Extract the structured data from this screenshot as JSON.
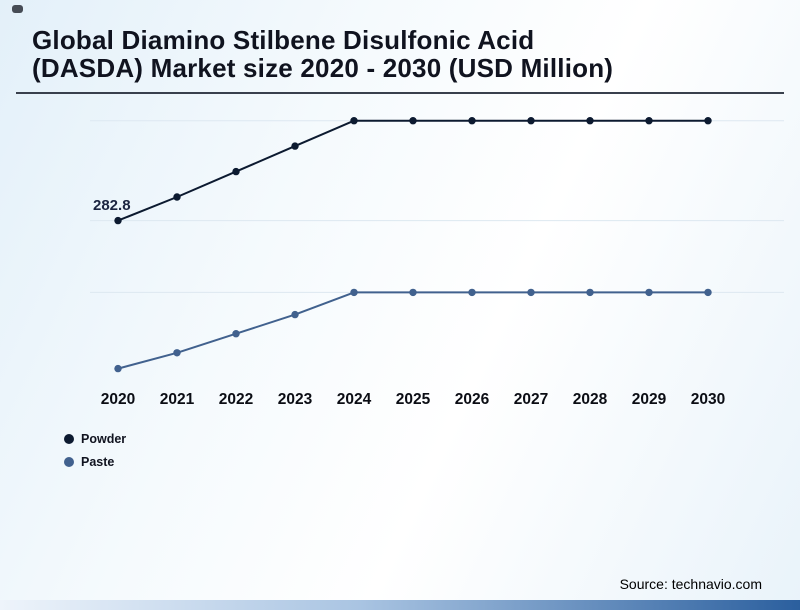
{
  "page": {
    "title": "Global Diamino Stilbene Disulfonic Acid (DASDA) Market size 2020 - 2030 (USD Million)",
    "source": "Source: technavio.com"
  },
  "chart_data": {
    "type": "line",
    "title": "Global Diamino Stilbene Disulfonic Acid (DASDA) Market size 2020 - 2030 (USD Million)",
    "xlabel": "",
    "ylabel": "USD Million",
    "categories": [
      "2020",
      "2021",
      "2022",
      "2023",
      "2024",
      "2025",
      "2026",
      "2027",
      "2028",
      "2029",
      "2030"
    ],
    "series": [
      {
        "name": "Powder",
        "color": "#0c1a30",
        "values": [
          282.8,
          320,
          360,
          400,
          440,
          440,
          440,
          440,
          440,
          440,
          440
        ]
      },
      {
        "name": "Paste",
        "color": "#41618e",
        "values": [
          50,
          75,
          105,
          135,
          170,
          170,
          170,
          170,
          170,
          170,
          170
        ]
      }
    ],
    "ylim": [
      40,
      460
    ],
    "grid": true,
    "grid_values": [
      440,
      282.8,
      170
    ],
    "legend_position": "bottom-left",
    "annotations": [
      {
        "text": "282.8",
        "series": "Powder",
        "index": 0
      }
    ]
  },
  "legend": {
    "items": [
      {
        "label": "Powder",
        "color": "#0c1a30"
      },
      {
        "label": "Paste",
        "color": "#41618e"
      }
    ]
  }
}
